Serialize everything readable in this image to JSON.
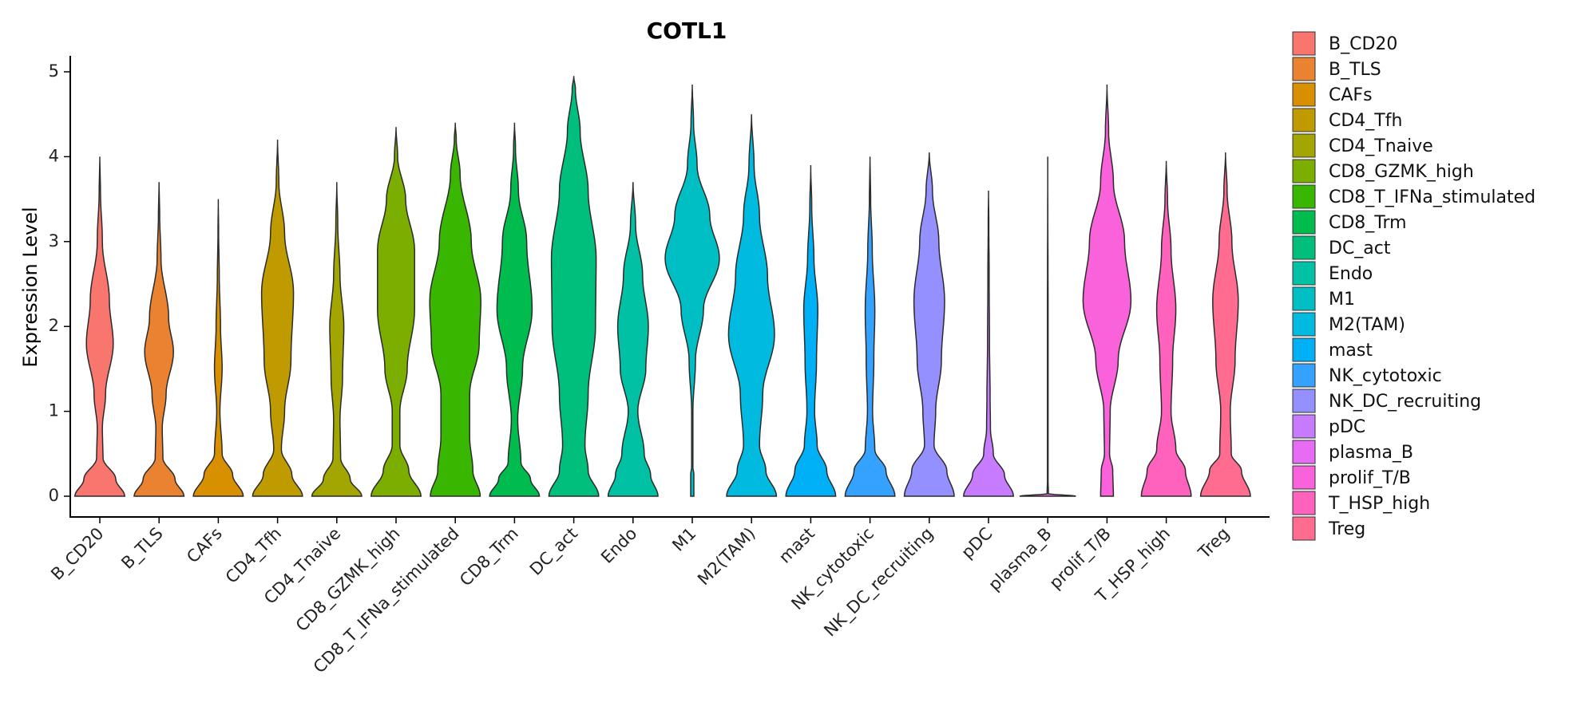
{
  "chart_data": {
    "type": "violin",
    "title": "COTL1",
    "xlabel": "",
    "ylabel": "Expression Level",
    "ylim": [
      0,
      5
    ],
    "yticks": [
      0,
      1,
      2,
      3,
      4,
      5
    ],
    "legend_position": "right",
    "categories": [
      "B_CD20",
      "B_TLS",
      "CAFs",
      "CD4_Tfh",
      "CD4_Tnaive",
      "CD8_GZMK_high",
      "CD8_T_IFNa_stimulated",
      "CD8_Trm",
      "DC_act",
      "Endo",
      "M1",
      "M2(TAM)",
      "mast",
      "NK_cytotoxic",
      "NK_DC_recruiting",
      "pDC",
      "plasma_B",
      "prolif_T/B",
      "T_HSP_high",
      "Treg"
    ],
    "colors": [
      "#F8766D",
      "#EA8331",
      "#D89000",
      "#C09B00",
      "#A3A500",
      "#7CAE00",
      "#39B600",
      "#00BB4E",
      "#00BF7D",
      "#00C1A3",
      "#00BFC4",
      "#00BAE0",
      "#00B0F6",
      "#35A2FF",
      "#9590FF",
      "#C77CFF",
      "#E76BF3",
      "#FA62DB",
      "#FF62BC",
      "#FF6C90"
    ],
    "series": [
      {
        "name": "B_CD20",
        "max": 4.0,
        "profile": [
          [
            0,
            0.78
          ],
          [
            0.2,
            0.5
          ],
          [
            0.45,
            0.1
          ],
          [
            0.8,
            0.08
          ],
          [
            1.2,
            0.18
          ],
          [
            1.8,
            0.42
          ],
          [
            2.3,
            0.3
          ],
          [
            3.0,
            0.08
          ],
          [
            3.6,
            0.02
          ],
          [
            4.0,
            0.0
          ]
        ]
      },
      {
        "name": "B_TLS",
        "max": 3.7,
        "profile": [
          [
            0,
            0.78
          ],
          [
            0.2,
            0.5
          ],
          [
            0.45,
            0.12
          ],
          [
            0.8,
            0.1
          ],
          [
            1.2,
            0.22
          ],
          [
            1.7,
            0.45
          ],
          [
            2.1,
            0.3
          ],
          [
            2.8,
            0.06
          ],
          [
            3.3,
            0.02
          ],
          [
            3.7,
            0.0
          ]
        ]
      },
      {
        "name": "CAFs",
        "max": 3.5,
        "profile": [
          [
            0,
            0.78
          ],
          [
            0.25,
            0.45
          ],
          [
            0.5,
            0.12
          ],
          [
            1.0,
            0.05
          ],
          [
            1.5,
            0.12
          ],
          [
            2.0,
            0.07
          ],
          [
            2.6,
            0.03
          ],
          [
            3.1,
            0.01
          ],
          [
            3.5,
            0.0
          ]
        ]
      },
      {
        "name": "CD4_Tfh",
        "max": 4.2,
        "profile": [
          [
            0,
            0.78
          ],
          [
            0.25,
            0.45
          ],
          [
            0.55,
            0.12
          ],
          [
            1.0,
            0.22
          ],
          [
            1.6,
            0.42
          ],
          [
            2.4,
            0.5
          ],
          [
            3.1,
            0.22
          ],
          [
            3.7,
            0.04
          ],
          [
            4.2,
            0.0
          ]
        ]
      },
      {
        "name": "CD4_Tnaive",
        "max": 3.7,
        "profile": [
          [
            0,
            0.78
          ],
          [
            0.2,
            0.42
          ],
          [
            0.45,
            0.12
          ],
          [
            0.9,
            0.1
          ],
          [
            1.4,
            0.18
          ],
          [
            2.0,
            0.22
          ],
          [
            2.6,
            0.1
          ],
          [
            3.2,
            0.03
          ],
          [
            3.7,
            0.0
          ]
        ]
      },
      {
        "name": "CD8_GZMK_high",
        "max": 4.35,
        "profile": [
          [
            0,
            0.78
          ],
          [
            0.3,
            0.4
          ],
          [
            0.6,
            0.12
          ],
          [
            1.0,
            0.12
          ],
          [
            1.5,
            0.35
          ],
          [
            2.2,
            0.58
          ],
          [
            2.9,
            0.58
          ],
          [
            3.5,
            0.3
          ],
          [
            4.0,
            0.05
          ],
          [
            4.35,
            0.0
          ]
        ]
      },
      {
        "name": "CD8_T_IFNa_stimulated",
        "max": 4.4,
        "profile": [
          [
            0,
            0.78
          ],
          [
            0.3,
            0.55
          ],
          [
            0.7,
            0.45
          ],
          [
            1.2,
            0.45
          ],
          [
            1.8,
            0.75
          ],
          [
            2.3,
            0.8
          ],
          [
            3.0,
            0.5
          ],
          [
            3.8,
            0.15
          ],
          [
            4.2,
            0.03
          ],
          [
            4.4,
            0.0
          ]
        ]
      },
      {
        "name": "CD8_Trm",
        "max": 4.4,
        "profile": [
          [
            0,
            0.78
          ],
          [
            0.2,
            0.5
          ],
          [
            0.4,
            0.2
          ],
          [
            0.9,
            0.1
          ],
          [
            1.5,
            0.25
          ],
          [
            2.2,
            0.55
          ],
          [
            3.0,
            0.38
          ],
          [
            3.6,
            0.12
          ],
          [
            4.1,
            0.03
          ],
          [
            4.4,
            0.0
          ]
        ]
      },
      {
        "name": "DC_act",
        "max": 4.95,
        "profile": [
          [
            0,
            0.78
          ],
          [
            0.3,
            0.45
          ],
          [
            0.6,
            0.35
          ],
          [
            1.2,
            0.45
          ],
          [
            2.0,
            0.68
          ],
          [
            2.8,
            0.7
          ],
          [
            3.6,
            0.45
          ],
          [
            4.3,
            0.2
          ],
          [
            4.8,
            0.05
          ],
          [
            4.95,
            0.0
          ]
        ]
      },
      {
        "name": "Endo",
        "max": 3.7,
        "profile": [
          [
            0,
            0.78
          ],
          [
            0.25,
            0.55
          ],
          [
            0.5,
            0.35
          ],
          [
            1.0,
            0.15
          ],
          [
            1.5,
            0.4
          ],
          [
            2.0,
            0.48
          ],
          [
            2.6,
            0.3
          ],
          [
            3.2,
            0.08
          ],
          [
            3.7,
            0.0
          ]
        ]
      },
      {
        "name": "M1",
        "max": 4.85,
        "profile": [
          [
            0,
            0.05
          ],
          [
            0.25,
            0.05
          ],
          [
            0.35,
            0.02
          ],
          [
            1.0,
            0.02
          ],
          [
            1.6,
            0.1
          ],
          [
            2.2,
            0.35
          ],
          [
            2.8,
            0.85
          ],
          [
            3.3,
            0.55
          ],
          [
            3.9,
            0.15
          ],
          [
            4.4,
            0.04
          ],
          [
            4.85,
            0.0
          ]
        ]
      },
      {
        "name": "M2(TAM)",
        "max": 4.5,
        "profile": [
          [
            0,
            0.78
          ],
          [
            0.3,
            0.45
          ],
          [
            0.6,
            0.25
          ],
          [
            1.2,
            0.35
          ],
          [
            1.9,
            0.72
          ],
          [
            2.6,
            0.5
          ],
          [
            3.3,
            0.25
          ],
          [
            3.9,
            0.08
          ],
          [
            4.5,
            0.0
          ]
        ]
      },
      {
        "name": "mast",
        "max": 3.9,
        "profile": [
          [
            0,
            0.78
          ],
          [
            0.3,
            0.5
          ],
          [
            0.6,
            0.2
          ],
          [
            1.0,
            0.12
          ],
          [
            1.6,
            0.18
          ],
          [
            2.2,
            0.22
          ],
          [
            2.8,
            0.1
          ],
          [
            3.4,
            0.03
          ],
          [
            3.9,
            0.0
          ]
        ]
      },
      {
        "name": "NK_cytotoxic",
        "max": 4.0,
        "profile": [
          [
            0,
            0.78
          ],
          [
            0.3,
            0.5
          ],
          [
            0.55,
            0.15
          ],
          [
            1.0,
            0.08
          ],
          [
            1.6,
            0.12
          ],
          [
            2.2,
            0.15
          ],
          [
            2.9,
            0.07
          ],
          [
            3.5,
            0.02
          ],
          [
            4.0,
            0.0
          ]
        ]
      },
      {
        "name": "NK_DC_recruiting",
        "max": 4.05,
        "profile": [
          [
            0,
            0.78
          ],
          [
            0.3,
            0.55
          ],
          [
            0.6,
            0.15
          ],
          [
            1.0,
            0.2
          ],
          [
            1.6,
            0.38
          ],
          [
            2.3,
            0.48
          ],
          [
            3.0,
            0.3
          ],
          [
            3.6,
            0.1
          ],
          [
            4.05,
            0.0
          ]
        ]
      },
      {
        "name": "pDC",
        "max": 3.6,
        "profile": [
          [
            0,
            0.78
          ],
          [
            0.25,
            0.5
          ],
          [
            0.5,
            0.15
          ],
          [
            0.8,
            0.06
          ],
          [
            1.2,
            0.05
          ],
          [
            1.8,
            0.03
          ],
          [
            2.6,
            0.02
          ],
          [
            3.2,
            0.01
          ],
          [
            3.6,
            0.0
          ]
        ]
      },
      {
        "name": "plasma_B",
        "max": 4.0,
        "profile": [
          [
            0,
            0.88
          ],
          [
            0.03,
            0.02
          ],
          [
            0.2,
            0.01
          ],
          [
            2.0,
            0.01
          ],
          [
            4.0,
            0.0
          ]
        ]
      },
      {
        "name": "prolif_T/B",
        "max": 4.85,
        "profile": [
          [
            0,
            0.2
          ],
          [
            0.3,
            0.18
          ],
          [
            0.5,
            0.08
          ],
          [
            1.0,
            0.1
          ],
          [
            1.6,
            0.35
          ],
          [
            2.3,
            0.75
          ],
          [
            3.0,
            0.55
          ],
          [
            3.7,
            0.2
          ],
          [
            4.3,
            0.05
          ],
          [
            4.85,
            0.0
          ]
        ]
      },
      {
        "name": "T_HSP_high",
        "max": 3.95,
        "profile": [
          [
            0,
            0.78
          ],
          [
            0.3,
            0.6
          ],
          [
            0.55,
            0.3
          ],
          [
            1.0,
            0.15
          ],
          [
            1.6,
            0.2
          ],
          [
            2.2,
            0.3
          ],
          [
            2.9,
            0.15
          ],
          [
            3.5,
            0.04
          ],
          [
            3.95,
            0.0
          ]
        ]
      },
      {
        "name": "Treg",
        "max": 4.05,
        "profile": [
          [
            0,
            0.78
          ],
          [
            0.3,
            0.5
          ],
          [
            0.5,
            0.18
          ],
          [
            1.0,
            0.15
          ],
          [
            1.6,
            0.3
          ],
          [
            2.3,
            0.4
          ],
          [
            3.0,
            0.2
          ],
          [
            3.6,
            0.05
          ],
          [
            4.05,
            0.0
          ]
        ]
      }
    ]
  }
}
